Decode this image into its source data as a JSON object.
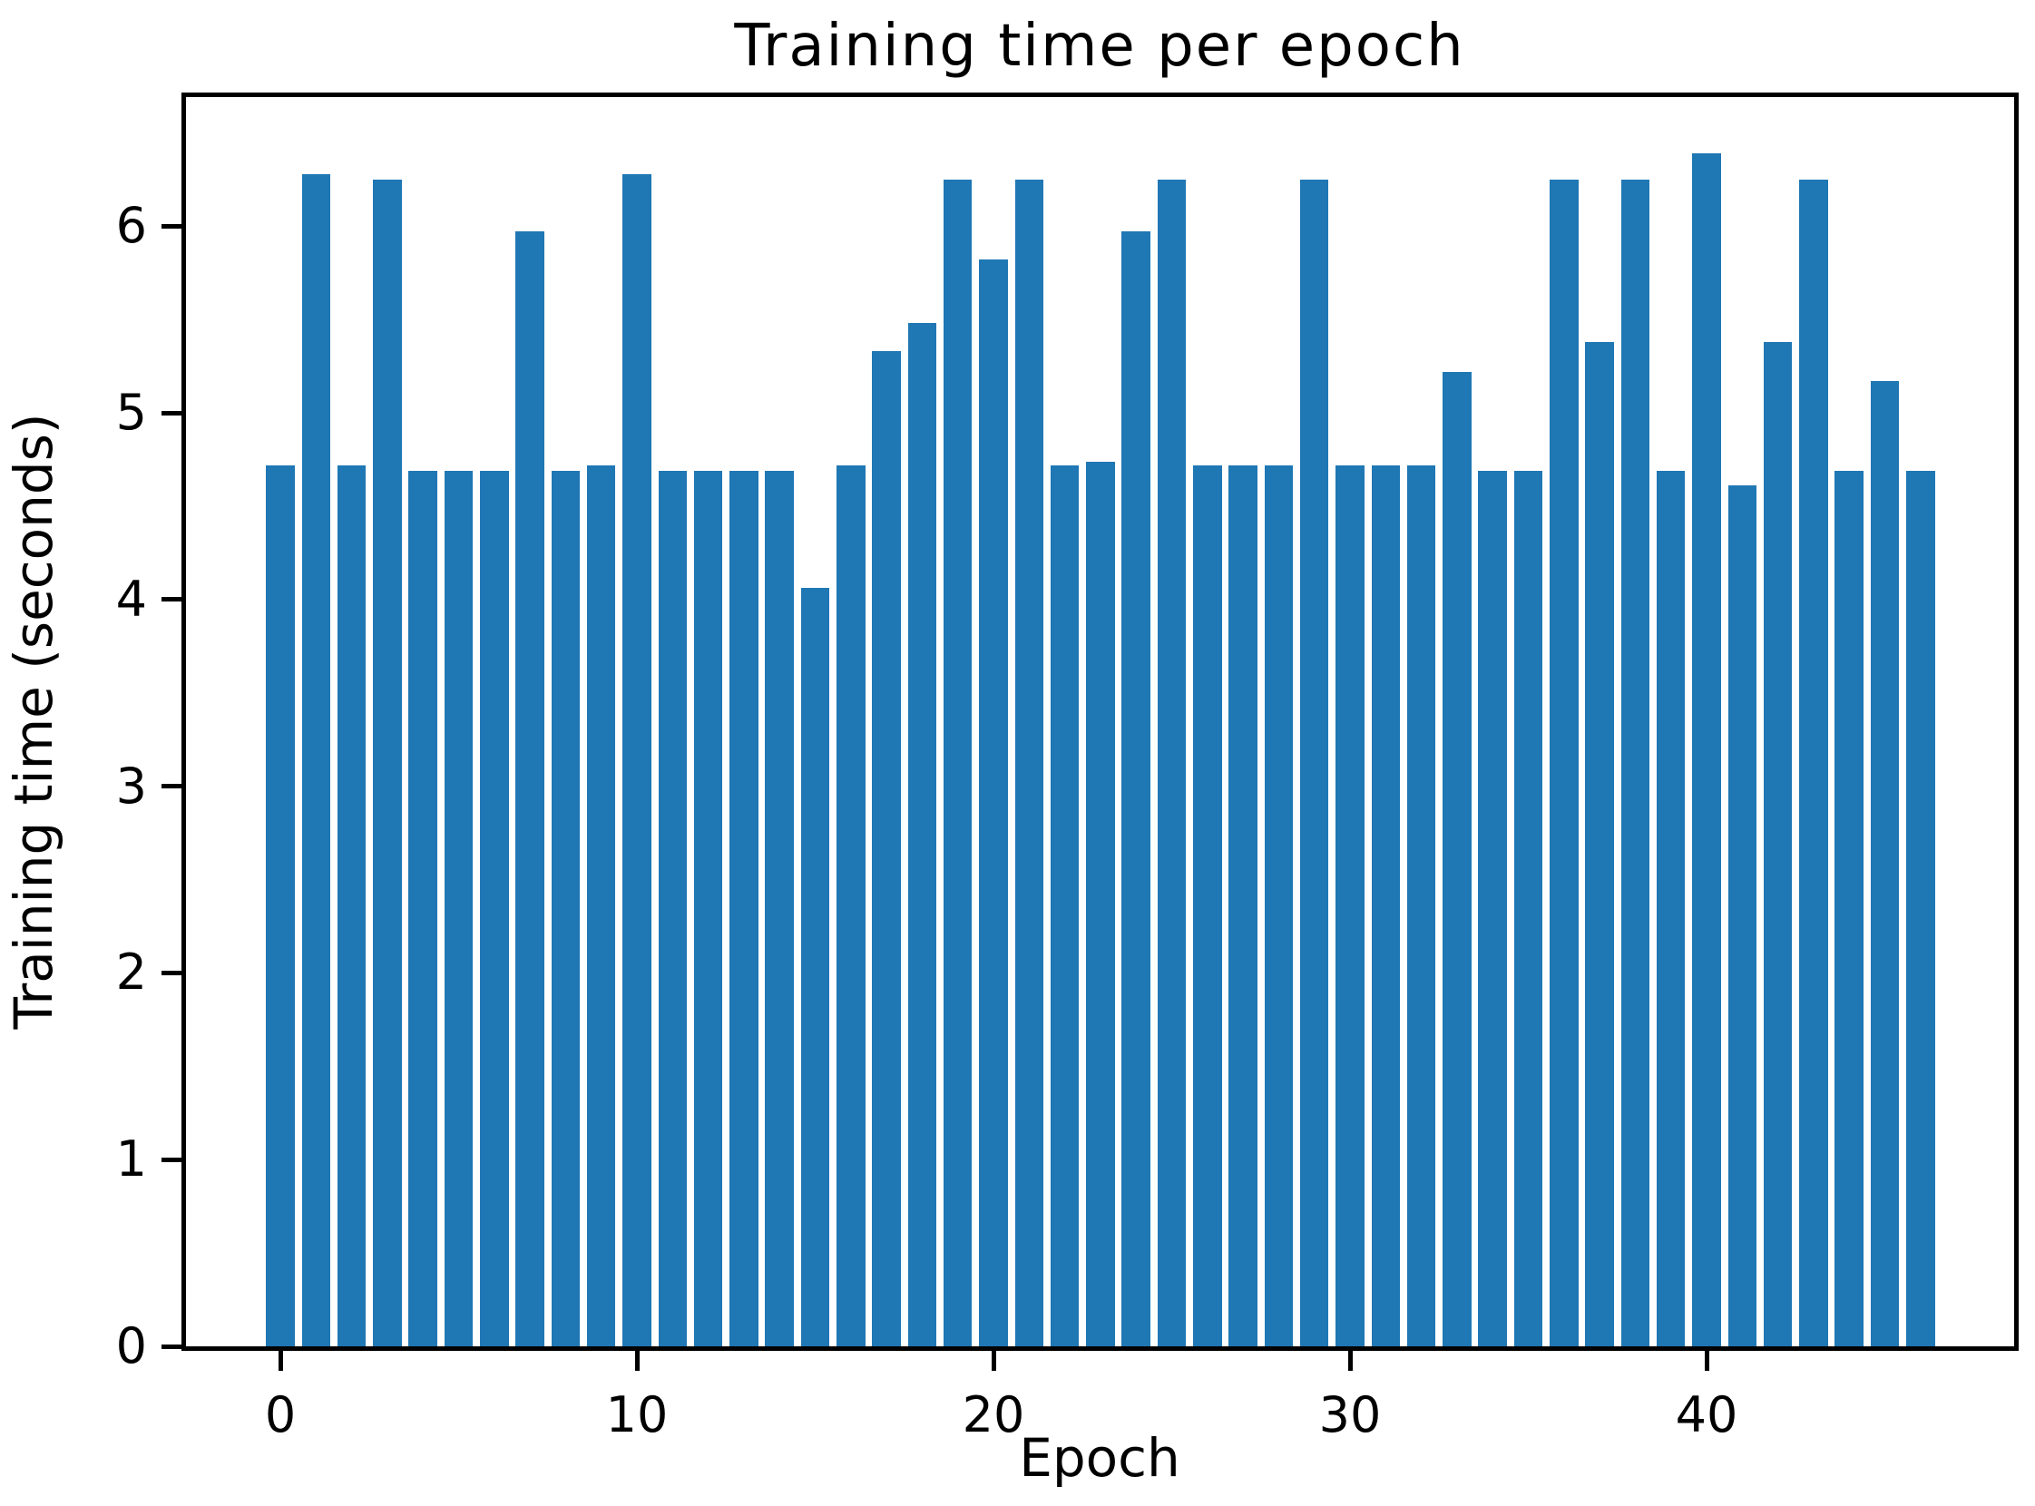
{
  "title": "Training time per epoch",
  "x_axis": {
    "label": "Epoch",
    "tick_values": [
      0,
      10,
      20,
      30,
      40
    ]
  },
  "y_axis": {
    "label": "Training time (seconds)",
    "tick_values": [
      0,
      1,
      2,
      3,
      4,
      5,
      6
    ]
  },
  "colors": {
    "bar": "#1f77b4",
    "spine": "#000000",
    "text": "#000000",
    "background": "#ffffff"
  },
  "chart_data": {
    "type": "bar",
    "title": "Training time per epoch",
    "xlabel": "Epoch",
    "ylabel": "Training time (seconds)",
    "x": [
      0,
      1,
      2,
      3,
      4,
      5,
      6,
      7,
      8,
      9,
      10,
      11,
      12,
      13,
      14,
      15,
      16,
      17,
      18,
      19,
      20,
      21,
      22,
      23,
      24,
      25,
      26,
      27,
      28,
      29,
      30,
      31,
      32,
      33,
      34,
      35,
      36,
      37,
      38,
      39,
      40,
      41,
      42,
      43,
      44,
      45,
      46
    ],
    "values": [
      4.72,
      6.28,
      4.72,
      6.25,
      4.69,
      4.69,
      4.69,
      5.97,
      4.69,
      4.72,
      6.28,
      4.69,
      4.69,
      4.69,
      4.69,
      4.06,
      4.72,
      5.33,
      5.48,
      6.25,
      5.82,
      6.25,
      4.72,
      4.74,
      5.97,
      6.25,
      4.72,
      4.72,
      4.72,
      6.25,
      4.72,
      4.72,
      4.72,
      5.22,
      4.69,
      4.69,
      6.25,
      5.38,
      6.25,
      4.69,
      6.39,
      4.61,
      5.38,
      6.25,
      4.69,
      5.17,
      4.69
    ],
    "bar_color": "#1f77b4",
    "bar_width": 0.8,
    "xlim": [
      -2.74,
      48.74
    ],
    "ylim": [
      0,
      6.71
    ],
    "grid": false,
    "legend": null
  }
}
